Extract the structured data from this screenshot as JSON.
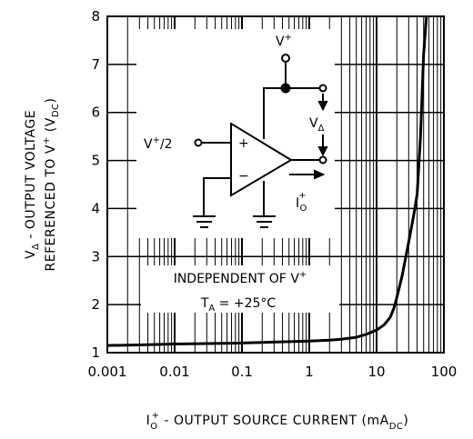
{
  "chart_data": {
    "type": "line",
    "title": "",
    "xscale": "log",
    "xlim": [
      0.001,
      100
    ],
    "ylim": [
      1,
      8
    ],
    "grid": true,
    "xticks": [
      "0.001",
      "0.01",
      "0.1",
      "1",
      "10",
      "100"
    ],
    "yticks": [
      "1",
      "2",
      "3",
      "4",
      "5",
      "6",
      "7",
      "8"
    ],
    "xlabel": {
      "pre": "I",
      "pre_sub": "O",
      "pre_sup": "+",
      "main": " - OUTPUT SOURCE CURRENT (mA",
      "main_sub": "DC",
      "post": ")"
    },
    "ylabel": {
      "line1_pre": "V",
      "line1_sub": "Δ",
      "line1_main": " - OUTPUT VOLTAGE",
      "line2_main": "REFERENCED TO V",
      "line2_sup": "+",
      "line2_post": " (V",
      "line2_sub": "DC",
      "line2_end": ")"
    },
    "series": [
      {
        "x": [
          0.001,
          0.003,
          0.01,
          0.03,
          0.1,
          0.3,
          1,
          2,
          3,
          5,
          7,
          10,
          13,
          16,
          18,
          20,
          24,
          30,
          36,
          40,
          45,
          50,
          55
        ],
        "y": [
          1.15,
          1.16,
          1.18,
          1.19,
          1.2,
          1.22,
          1.24,
          1.26,
          1.28,
          1.32,
          1.38,
          1.47,
          1.58,
          1.74,
          1.92,
          2.15,
          2.6,
          3.3,
          3.9,
          4.3,
          5.5,
          7.2,
          8.0
        ]
      }
    ],
    "annotations": {
      "line1_main": "INDEPENDENT OF V",
      "line1_sup": "+",
      "line2_pre": "T",
      "line2_sub": "A",
      "line2_main": " = +25°C"
    },
    "schematic": {
      "vplus_pre": "V",
      "vplus_sup": "+",
      "vplus2_pre": "V",
      "vplus2_sup": "+",
      "vplus2_main": "/2",
      "plus_sign": "+",
      "minus_sign": "−",
      "vdelta_pre": "V",
      "vdelta_sub": "Δ",
      "io_pre": "I",
      "io_sup": "+",
      "io_sub": "O"
    }
  }
}
